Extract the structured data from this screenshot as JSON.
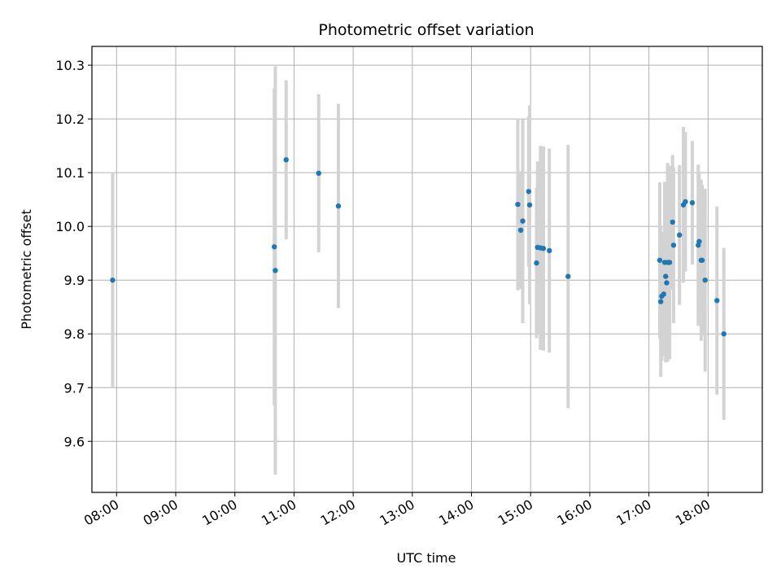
{
  "chart_data": {
    "type": "scatter",
    "title": "Photometric offset variation",
    "xlabel": "UTC time",
    "ylabel": "Photometric offset",
    "x_unit": "UTC time (hours)",
    "xlim": [
      "07:35",
      "18:55"
    ],
    "ylim": [
      9.505,
      10.335
    ],
    "grid": true,
    "legend": "none",
    "x_ticks": [
      "08:00",
      "09:00",
      "10:00",
      "11:00",
      "12:00",
      "13:00",
      "14:00",
      "15:00",
      "16:00",
      "17:00",
      "18:00"
    ],
    "y_ticks": [
      "9.6",
      "9.7",
      "9.8",
      "9.9",
      "10.0",
      "10.1",
      "10.2",
      "10.3"
    ],
    "colors": {
      "point": "#1f77b4",
      "errorbar": "#d3d3d3",
      "grid": "#b0b0b0"
    },
    "points": [
      {
        "x": "07:56",
        "y": 9.9,
        "yerr": 0.2
      },
      {
        "x": "10:40",
        "y": 9.962,
        "yerr": 0.295
      },
      {
        "x": "10:41",
        "y": 9.918,
        "yerr": 0.38
      },
      {
        "x": "10:52",
        "y": 10.124,
        "yerr": 0.148
      },
      {
        "x": "11:25",
        "y": 10.099,
        "yerr": 0.147
      },
      {
        "x": "11:45",
        "y": 10.038,
        "yerr": 0.19
      },
      {
        "x": "14:47",
        "y": 10.041,
        "yerr": 0.16
      },
      {
        "x": "14:50",
        "y": 9.993,
        "yerr": 0.11
      },
      {
        "x": "14:52",
        "y": 10.01,
        "yerr": 0.19
      },
      {
        "x": "14:58",
        "y": 10.065,
        "yerr": 0.14
      },
      {
        "x": "14:59",
        "y": 10.04,
        "yerr": 0.185
      },
      {
        "x": "15:06",
        "y": 9.932,
        "yerr": 0.14
      },
      {
        "x": "15:07",
        "y": 9.961,
        "yerr": 0.16
      },
      {
        "x": "15:10",
        "y": 9.96,
        "yerr": 0.19
      },
      {
        "x": "15:13",
        "y": 9.959,
        "yerr": 0.19
      },
      {
        "x": "15:19",
        "y": 9.955,
        "yerr": 0.19
      },
      {
        "x": "15:38",
        "y": 9.907,
        "yerr": 0.245
      },
      {
        "x": "17:11",
        "y": 9.937,
        "yerr": 0.145
      },
      {
        "x": "17:12",
        "y": 9.86,
        "yerr": 0.14
      },
      {
        "x": "17:13",
        "y": 9.87,
        "yerr": 0.12
      },
      {
        "x": "17:15",
        "y": 9.874,
        "yerr": 0.115
      },
      {
        "x": "17:16",
        "y": 9.933,
        "yerr": 0.15
      },
      {
        "x": "17:17",
        "y": 9.907,
        "yerr": 0.16
      },
      {
        "x": "17:18",
        "y": 9.895,
        "yerr": 0.145
      },
      {
        "x": "17:19",
        "y": 9.933,
        "yerr": 0.185
      },
      {
        "x": "17:21",
        "y": 9.933,
        "yerr": 0.18
      },
      {
        "x": "17:24",
        "y": 10.008,
        "yerr": 0.125
      },
      {
        "x": "17:25",
        "y": 9.965,
        "yerr": 0.145
      },
      {
        "x": "17:31",
        "y": 9.984,
        "yerr": 0.13
      },
      {
        "x": "17:35",
        "y": 10.04,
        "yerr": 0.145
      },
      {
        "x": "17:37",
        "y": 10.046,
        "yerr": 0.13
      },
      {
        "x": "17:44",
        "y": 10.044,
        "yerr": 0.115
      },
      {
        "x": "17:50",
        "y": 9.965,
        "yerr": 0.15
      },
      {
        "x": "17:51",
        "y": 9.972,
        "yerr": 0.13
      },
      {
        "x": "17:53",
        "y": 9.937,
        "yerr": 0.15
      },
      {
        "x": "17:54",
        "y": 9.937,
        "yerr": 0.14
      },
      {
        "x": "17:57",
        "y": 9.9,
        "yerr": 0.17
      },
      {
        "x": "18:09",
        "y": 9.862,
        "yerr": 0.175
      },
      {
        "x": "18:16",
        "y": 9.8,
        "yerr": 0.16
      }
    ]
  }
}
